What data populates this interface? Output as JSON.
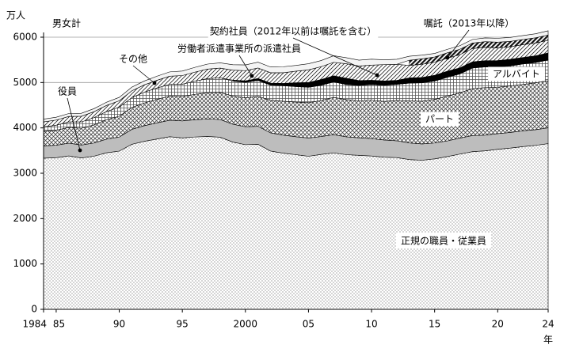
{
  "chart_data": {
    "type": "stacked-area",
    "annotation": "男女計",
    "y_label": "万人",
    "x_label": "年",
    "x": [
      1984,
      1985,
      1986,
      1987,
      1988,
      1989,
      1990,
      1991,
      1992,
      1993,
      1994,
      1995,
      1996,
      1997,
      1998,
      1999,
      2000,
      2001,
      2002,
      2003,
      2004,
      2005,
      2006,
      2007,
      2008,
      2009,
      2010,
      2011,
      2012,
      2013,
      2014,
      2015,
      2016,
      2017,
      2018,
      2019,
      2020,
      2021,
      2022,
      2023,
      2024
    ],
    "xlim": [
      1984,
      2024
    ],
    "xticks": [
      1984,
      {
        "value": 1985,
        "label": "85"
      },
      {
        "value": 1990,
        "label": "90"
      },
      {
        "value": 1995,
        "label": "95"
      },
      2000,
      {
        "value": 2005,
        "label": "05"
      },
      {
        "value": 2010,
        "label": "10"
      },
      {
        "value": 2015,
        "label": "15"
      },
      {
        "value": 2020,
        "label": "20"
      },
      {
        "value": 2024,
        "label": "24"
      }
    ],
    "ylim": [
      0,
      6000
    ],
    "yticks": [
      0,
      1000,
      2000,
      3000,
      4000,
      5000,
      6000
    ],
    "grid": true,
    "series": [
      {
        "name": "正規の職員・従業員",
        "color": "#ffffff",
        "values": [
          3333,
          3343,
          3383,
          3337,
          3377,
          3452,
          3488,
          3639,
          3705,
          3756,
          3805,
          3779,
          3800,
          3812,
          3794,
          3688,
          3630,
          3640,
          3489,
          3444,
          3410,
          3375,
          3415,
          3449,
          3410,
          3395,
          3380,
          3355,
          3345,
          3302,
          3288,
          3317,
          3367,
          3423,
          3476,
          3494,
          3529,
          3555,
          3588,
          3615,
          3654
        ]
      },
      {
        "name": "役員",
        "color": "#bdbdbd",
        "values": [
          270,
          275,
          280,
          285,
          290,
          300,
          310,
          330,
          345,
          355,
          365,
          375,
          380,
          385,
          390,
          395,
          395,
          395,
          401,
          397,
          396,
          401,
          395,
          402,
          393,
          386,
          383,
          378,
          372,
          366,
          358,
          350,
          346,
          352,
          355,
          347,
          344,
          345,
          348,
          345,
          348
        ]
      },
      {
        "name": "パート",
        "color": "#ffffff",
        "values": [
          320,
          330,
          350,
          370,
          400,
          430,
          460,
          480,
          500,
          520,
          530,
          540,
          560,
          580,
          600,
          620,
          640,
          660,
          718,
          748,
          763,
          780,
          793,
          822,
          821,
          817,
          848,
          851,
          888,
          928,
          943,
          961,
          988,
          997,
          1035,
          1047,
          1024,
          1025,
          1021,
          1034,
          1037
        ]
      },
      {
        "name": "アルバイト",
        "color": "#ffffff",
        "values": [
          100,
          110,
          120,
          140,
          160,
          180,
          200,
          220,
          240,
          250,
          260,
          270,
          290,
          310,
          320,
          330,
          340,
          350,
          336,
          342,
          342,
          340,
          336,
          342,
          331,
          339,
          344,
          356,
          353,
          392,
          404,
          405,
          415,
          417,
          455,
          456,
          449,
          439,
          454,
          447,
          459
        ]
      },
      {
        "name": "労働者派遣事業所の派遣社員",
        "color": "#000000",
        "values": [
          null,
          null,
          null,
          null,
          null,
          null,
          null,
          null,
          null,
          null,
          null,
          null,
          null,
          null,
          null,
          20,
          33,
          45,
          43,
          50,
          85,
          106,
          128,
          133,
          140,
          108,
          96,
          96,
          90,
          116,
          119,
          126,
          133,
          134,
          136,
          139,
          138,
          149,
          141,
          148,
          155
        ]
      },
      {
        "name": "契約社員（2012年以前は嘱託を含む）",
        "color": "#ffffff",
        "values": [
          110,
          115,
          120,
          125,
          130,
          135,
          140,
          150,
          160,
          170,
          180,
          190,
          200,
          210,
          215,
          220,
          225,
          230,
          230,
          236,
          255,
          278,
          283,
          298,
          320,
          320,
          333,
          360,
          354,
          273,
          292,
          287,
          287,
          291,
          294,
          294,
          280,
          275,
          283,
          282,
          281
        ]
      },
      {
        "name": "嘱託（2013年以降）",
        "color": "#ffffff",
        "values": [
          null,
          null,
          null,
          null,
          null,
          null,
          null,
          null,
          null,
          null,
          null,
          null,
          null,
          null,
          null,
          null,
          null,
          null,
          null,
          null,
          null,
          null,
          null,
          null,
          null,
          null,
          null,
          null,
          null,
          115,
          119,
          117,
          119,
          120,
          120,
          125,
          126,
          119,
          115,
          115,
          114
        ]
      },
      {
        "name": "その他",
        "color": "#f4f4f4",
        "values": [
          60,
          62,
          64,
          66,
          68,
          70,
          75,
          80,
          85,
          90,
          95,
          100,
          105,
          110,
          115,
          120,
          125,
          130,
          125,
          131,
          126,
          135,
          135,
          145,
          133,
          129,
          131,
          105,
          110,
          88,
          82,
          78,
          77,
          78,
          79,
          82,
          86,
          87,
          86,
          89,
          93
        ]
      }
    ]
  }
}
